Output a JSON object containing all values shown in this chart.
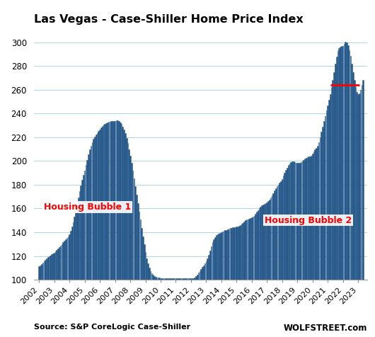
{
  "title": "Las Vegas - Case-Shiller Home Price Index",
  "source_text": "Source: S&P CoreLogic Case-Shiller",
  "watermark": "WOLFSTREET.com",
  "bar_color": "#1F4E79",
  "bar_edge_color": "#3a6fa8",
  "ylim": [
    100,
    310
  ],
  "yticks": [
    100,
    120,
    140,
    160,
    180,
    200,
    220,
    240,
    260,
    280,
    300
  ],
  "xlim_start": 2001.65,
  "xlim_end": 2023.62,
  "bubble1_label": "Housing Bubble 1",
  "bubble1_x": 2002.3,
  "bubble1_y": 159,
  "bubble2_label": "Housing Bubble 2",
  "bubble2_x": 2016.85,
  "bubble2_y": 148,
  "red_line_y": 264,
  "red_line_xstart": 2021.2,
  "red_line_xend": 2023.08,
  "data": {
    "2002-01": 111.3,
    "2002-02": 112.1,
    "2002-03": 113.2,
    "2002-04": 114.2,
    "2002-05": 115.4,
    "2002-06": 116.5,
    "2002-07": 117.7,
    "2002-08": 118.9,
    "2002-09": 119.8,
    "2002-10": 120.6,
    "2002-11": 121.3,
    "2002-12": 122.0,
    "2003-01": 122.8,
    "2003-02": 123.7,
    "2003-03": 124.8,
    "2003-04": 126.1,
    "2003-05": 127.3,
    "2003-06": 128.6,
    "2003-07": 130.0,
    "2003-08": 131.5,
    "2003-09": 132.9,
    "2003-10": 134.2,
    "2003-11": 135.4,
    "2003-12": 136.6,
    "2004-01": 138.5,
    "2004-02": 141.0,
    "2004-03": 144.5,
    "2004-04": 148.5,
    "2004-05": 153.0,
    "2004-06": 158.0,
    "2004-07": 163.5,
    "2004-08": 169.0,
    "2004-09": 174.5,
    "2004-10": 179.5,
    "2004-11": 184.0,
    "2004-12": 188.0,
    "2005-01": 192.0,
    "2005-02": 196.5,
    "2005-03": 201.0,
    "2005-04": 205.5,
    "2005-05": 209.5,
    "2005-06": 213.0,
    "2005-07": 216.0,
    "2005-08": 218.5,
    "2005-09": 220.5,
    "2005-10": 222.0,
    "2005-11": 223.5,
    "2005-12": 225.0,
    "2006-01": 226.5,
    "2006-02": 228.0,
    "2006-03": 229.5,
    "2006-04": 230.5,
    "2006-05": 231.5,
    "2006-06": 232.0,
    "2006-07": 232.5,
    "2006-08": 232.8,
    "2006-09": 233.0,
    "2006-10": 233.3,
    "2006-11": 233.5,
    "2006-12": 233.5,
    "2007-01": 233.8,
    "2007-02": 234.0,
    "2007-03": 234.0,
    "2007-04": 233.5,
    "2007-05": 232.5,
    "2007-06": 231.0,
    "2007-07": 229.0,
    "2007-08": 226.5,
    "2007-09": 223.5,
    "2007-10": 219.5,
    "2007-11": 215.0,
    "2007-12": 210.0,
    "2008-01": 204.5,
    "2008-02": 198.5,
    "2008-03": 192.0,
    "2008-04": 185.5,
    "2008-05": 178.5,
    "2008-06": 171.5,
    "2008-07": 164.5,
    "2008-08": 157.5,
    "2008-09": 150.5,
    "2008-10": 143.5,
    "2008-11": 136.5,
    "2008-12": 130.0,
    "2009-01": 123.5,
    "2009-02": 118.0,
    "2009-03": 113.5,
    "2009-04": 110.0,
    "2009-05": 107.5,
    "2009-06": 105.5,
    "2009-07": 104.0,
    "2009-08": 103.0,
    "2009-09": 102.5,
    "2009-10": 102.0,
    "2009-11": 101.8,
    "2009-12": 101.7,
    "2010-01": 101.5,
    "2010-02": 101.3,
    "2010-03": 101.2,
    "2010-04": 101.0,
    "2010-05": 101.0,
    "2010-06": 101.2,
    "2010-07": 101.0,
    "2010-08": 101.0,
    "2010-09": 101.0,
    "2010-10": 101.0,
    "2010-11": 101.0,
    "2010-12": 101.0,
    "2011-01": 101.0,
    "2011-02": 101.0,
    "2011-03": 101.0,
    "2011-04": 101.0,
    "2011-05": 101.0,
    "2011-06": 101.0,
    "2011-07": 101.0,
    "2011-08": 101.0,
    "2011-09": 101.0,
    "2011-10": 101.0,
    "2011-11": 101.0,
    "2011-12": 101.0,
    "2012-01": 101.0,
    "2012-02": 101.2,
    "2012-03": 101.5,
    "2012-04": 102.0,
    "2012-05": 103.0,
    "2012-06": 104.5,
    "2012-07": 106.0,
    "2012-08": 107.5,
    "2012-09": 109.0,
    "2012-10": 110.5,
    "2012-11": 112.0,
    "2012-12": 113.5,
    "2013-01": 115.5,
    "2013-02": 118.0,
    "2013-03": 121.0,
    "2013-04": 124.5,
    "2013-05": 128.0,
    "2013-06": 131.5,
    "2013-07": 134.0,
    "2013-08": 136.0,
    "2013-09": 137.5,
    "2013-10": 138.5,
    "2013-11": 139.0,
    "2013-12": 139.5,
    "2014-01": 140.0,
    "2014-02": 140.5,
    "2014-03": 141.0,
    "2014-04": 141.5,
    "2014-05": 142.0,
    "2014-06": 142.5,
    "2014-07": 143.0,
    "2014-08": 143.5,
    "2014-09": 143.8,
    "2014-10": 144.0,
    "2014-11": 144.0,
    "2014-12": 144.2,
    "2015-01": 144.5,
    "2015-02": 144.8,
    "2015-03": 145.2,
    "2015-04": 146.0,
    "2015-05": 147.0,
    "2015-06": 148.0,
    "2015-07": 149.0,
    "2015-08": 150.0,
    "2015-09": 150.5,
    "2015-10": 151.0,
    "2015-11": 151.5,
    "2015-12": 152.0,
    "2016-01": 152.5,
    "2016-02": 153.0,
    "2016-03": 154.0,
    "2016-04": 155.5,
    "2016-05": 157.0,
    "2016-06": 158.5,
    "2016-07": 160.0,
    "2016-08": 161.5,
    "2016-09": 162.5,
    "2016-10": 163.5,
    "2016-11": 164.0,
    "2016-12": 164.5,
    "2017-01": 165.0,
    "2017-02": 166.0,
    "2017-03": 167.5,
    "2017-04": 169.0,
    "2017-05": 171.0,
    "2017-06": 173.0,
    "2017-07": 175.0,
    "2017-08": 177.0,
    "2017-09": 178.5,
    "2017-10": 180.0,
    "2017-11": 181.5,
    "2017-12": 183.0,
    "2018-01": 185.0,
    "2018-02": 187.5,
    "2018-03": 190.0,
    "2018-04": 192.5,
    "2018-05": 194.5,
    "2018-06": 196.5,
    "2018-07": 198.0,
    "2018-08": 199.0,
    "2018-09": 199.5,
    "2018-10": 199.5,
    "2018-11": 199.0,
    "2018-12": 198.5,
    "2019-01": 198.5,
    "2019-02": 198.5,
    "2019-03": 198.5,
    "2019-04": 199.0,
    "2019-05": 200.0,
    "2019-06": 201.0,
    "2019-07": 202.0,
    "2019-08": 202.5,
    "2019-09": 203.0,
    "2019-10": 203.5,
    "2019-11": 204.0,
    "2019-12": 204.5,
    "2020-01": 206.0,
    "2020-02": 208.0,
    "2020-03": 210.0,
    "2020-04": 211.0,
    "2020-05": 213.0,
    "2020-06": 216.0,
    "2020-07": 220.0,
    "2020-08": 224.5,
    "2020-09": 229.0,
    "2020-10": 233.5,
    "2020-11": 238.0,
    "2020-12": 242.5,
    "2021-01": 247.0,
    "2021-02": 251.5,
    "2021-03": 256.5,
    "2021-04": 262.0,
    "2021-05": 268.0,
    "2021-06": 275.0,
    "2021-07": 282.0,
    "2021-08": 288.0,
    "2021-09": 292.5,
    "2021-10": 295.0,
    "2021-11": 296.0,
    "2021-12": 296.5,
    "2022-01": 297.0,
    "2022-02": 298.5,
    "2022-03": 300.5,
    "2022-04": 300.0,
    "2022-05": 297.5,
    "2022-06": 293.5,
    "2022-07": 288.5,
    "2022-08": 282.0,
    "2022-09": 275.0,
    "2022-10": 268.0,
    "2022-11": 262.0,
    "2022-12": 258.0,
    "2023-01": 256.0,
    "2023-02": 257.0,
    "2023-03": 260.0,
    "2023-04": 264.0,
    "2023-05": 268.0
  }
}
